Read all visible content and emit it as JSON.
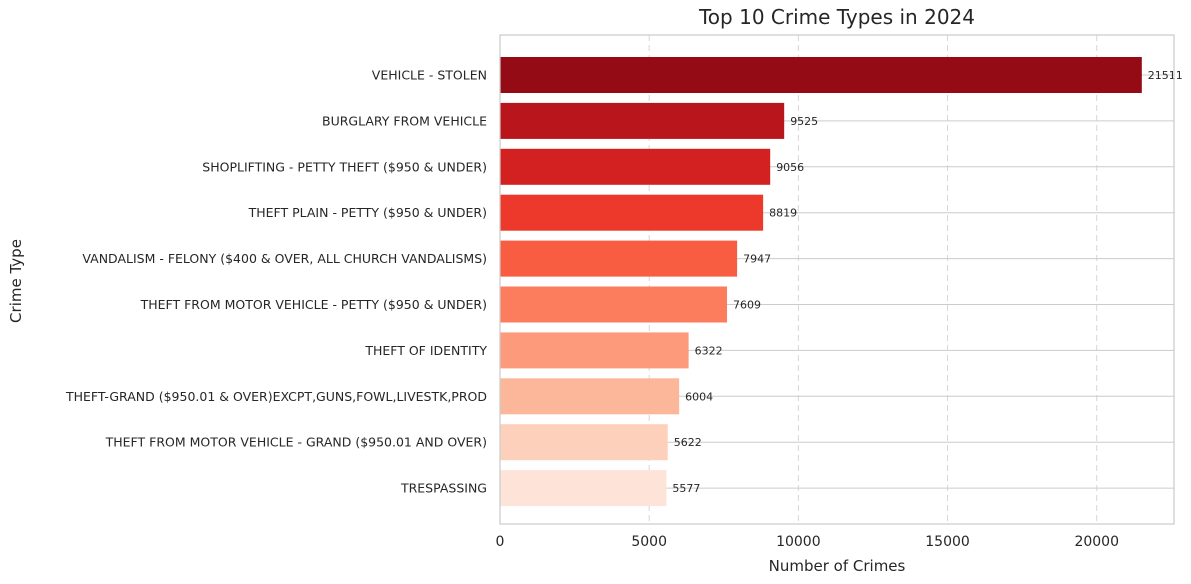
{
  "chart_data": {
    "type": "bar",
    "orientation": "horizontal",
    "title": "Top 10 Crime Types in 2024",
    "xlabel": "Number of Crimes",
    "ylabel": "Crime Type",
    "categories": [
      "VEHICLE - STOLEN",
      "BURGLARY FROM VEHICLE",
      "SHOPLIFTING - PETTY THEFT ($950 & UNDER)",
      "THEFT PLAIN - PETTY ($950 & UNDER)",
      "VANDALISM - FELONY ($400 & OVER, ALL CHURCH VANDALISMS)",
      "THEFT FROM MOTOR VEHICLE - PETTY ($950 & UNDER)",
      "THEFT OF IDENTITY",
      "THEFT-GRAND ($950.01 & OVER)EXCPT,GUNS,FOWL,LIVESTK,PROD",
      "THEFT FROM MOTOR VEHICLE - GRAND ($950.01 AND OVER)",
      "TRESPASSING"
    ],
    "values": [
      21511,
      9525,
      9056,
      8819,
      7947,
      7609,
      6322,
      6004,
      5622,
      5577
    ],
    "data_labels": [
      "21511",
      "9525",
      "9056",
      "8819",
      "7947",
      "7609",
      "6322",
      "6004",
      "5622",
      "5577"
    ],
    "xlim": [
      0,
      22590
    ],
    "xticks": [
      0,
      5000,
      10000,
      15000,
      20000
    ],
    "xtick_labels": [
      "0",
      "5000",
      "10000",
      "15000",
      "20000"
    ],
    "grid": {
      "x": "dashed",
      "y": "solid"
    },
    "colors": [
      "#940b15",
      "#b8151c",
      "#d32020",
      "#ec392b",
      "#f85c41",
      "#fb7d5d",
      "#fc9a7b",
      "#fcb69a",
      "#fdd0bc",
      "#fee4d8"
    ]
  }
}
